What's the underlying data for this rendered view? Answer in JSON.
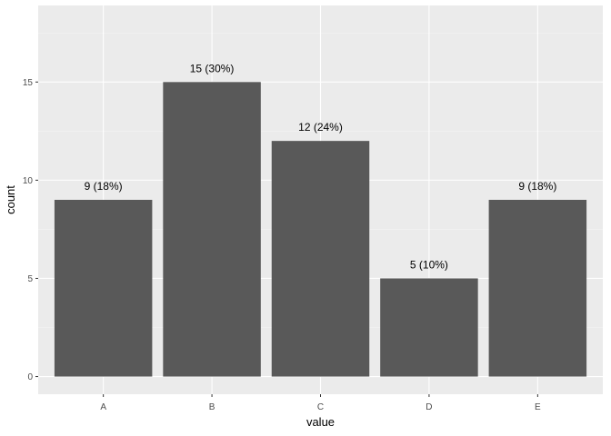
{
  "chart_data": {
    "type": "bar",
    "categories": [
      "A",
      "B",
      "C",
      "D",
      "E"
    ],
    "values": [
      9,
      15,
      12,
      5,
      9
    ],
    "data_labels": [
      "9 (18%)",
      "15 (30%)",
      "12 (24%)",
      "5 (10%)",
      "9 (18%)"
    ],
    "xlabel": "value",
    "ylabel": "count",
    "ylim": [
      -0.9,
      18.9
    ],
    "yticks": [
      0,
      5,
      10,
      15
    ],
    "ytick_labels": [
      "0",
      "5",
      "10",
      "15"
    ],
    "grid": true,
    "legend": "none",
    "colors": {
      "panel": "#ebebeb",
      "bar": "#595959",
      "grid_major": "#ffffff",
      "grid_minor": "#f5f5f5"
    }
  }
}
